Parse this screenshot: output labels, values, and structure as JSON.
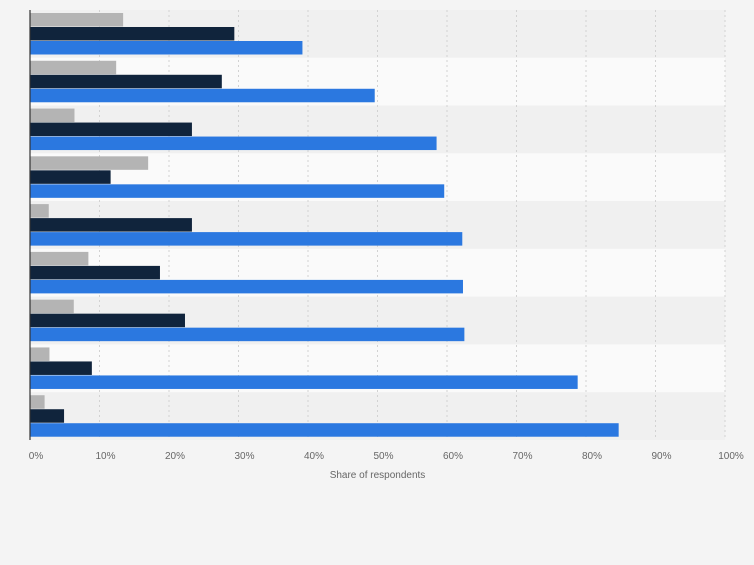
{
  "chart_data": {
    "type": "bar",
    "orientation": "horizontal",
    "title": "",
    "xlabel": "Share of respondents",
    "ylabel": "",
    "xlim": [
      0,
      100
    ],
    "x_ticks": [
      0,
      10,
      20,
      30,
      40,
      50,
      60,
      70,
      80,
      90,
      100
    ],
    "x_tick_labels": [
      "0%",
      "10%",
      "20%",
      "30%",
      "40%",
      "50%",
      "60%",
      "70%",
      "80%",
      "90%",
      "100%"
    ],
    "category_count": 9,
    "grid": true,
    "legend": "none",
    "series": [
      {
        "name": "series-gray",
        "color": "#b4b4b4",
        "values": [
          13.4,
          12.4,
          6.4,
          17.0,
          2.7,
          8.4,
          6.3,
          2.8,
          2.1
        ]
      },
      {
        "name": "series-navy",
        "color": "#10243c",
        "values": [
          29.4,
          27.6,
          23.3,
          11.6,
          23.3,
          18.7,
          22.3,
          8.9,
          4.9
        ]
      },
      {
        "name": "series-blue",
        "color": "#2b78e0",
        "values": [
          39.2,
          49.6,
          58.5,
          59.6,
          62.2,
          62.3,
          62.5,
          78.8,
          84.7
        ]
      }
    ]
  }
}
